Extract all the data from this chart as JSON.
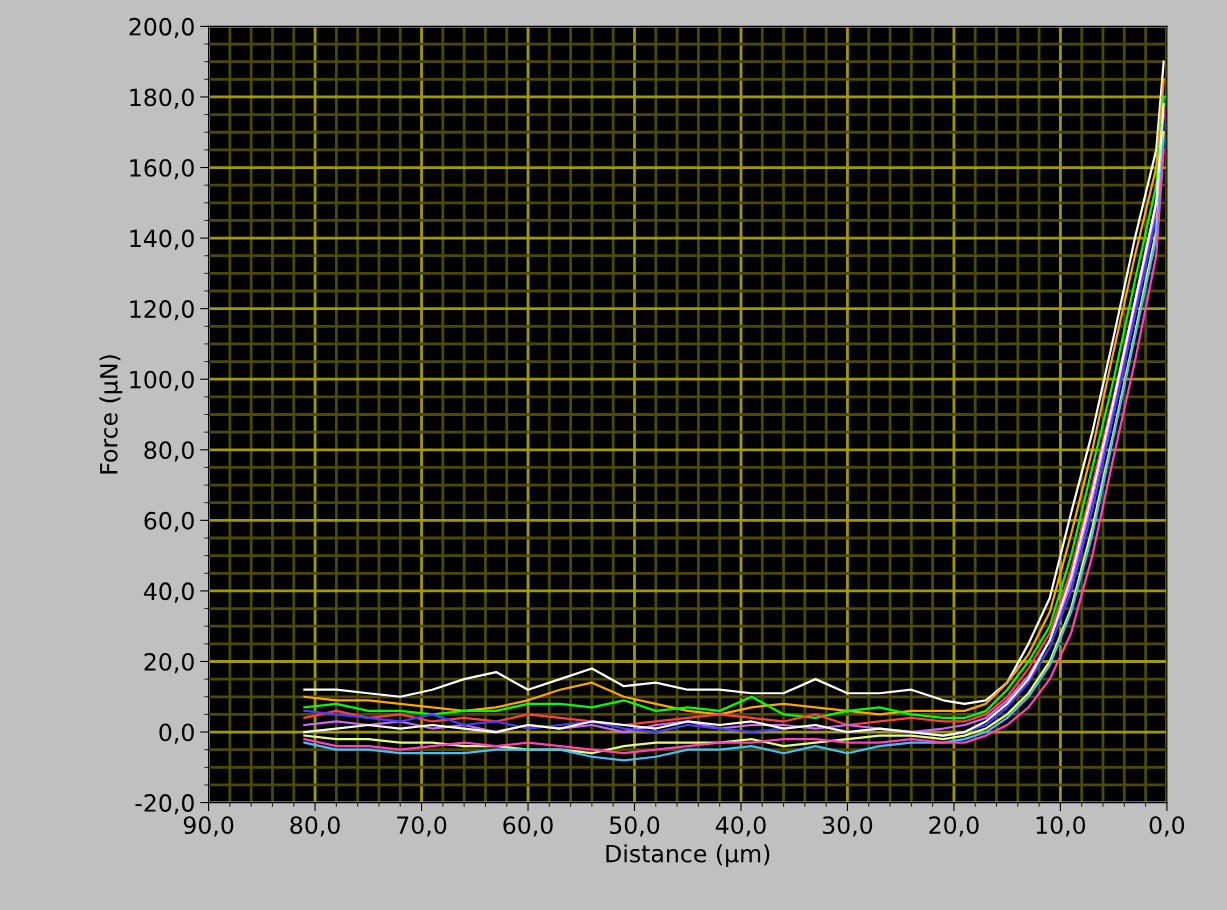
{
  "chart_data": {
    "type": "line",
    "xlabel": "Distance (µm)",
    "ylabel": "Force (µN)",
    "xlim": [
      90,
      0
    ],
    "ylim": [
      -20,
      200
    ],
    "xticks": [
      {
        "value": 90,
        "label": "90,0"
      },
      {
        "value": 80,
        "label": "80,0"
      },
      {
        "value": 70,
        "label": "70,0"
      },
      {
        "value": 60,
        "label": "60,0"
      },
      {
        "value": 50,
        "label": "50,0"
      },
      {
        "value": 40,
        "label": "40,0"
      },
      {
        "value": 30,
        "label": "30,0"
      },
      {
        "value": 20,
        "label": "20,0"
      },
      {
        "value": 10,
        "label": "10,0"
      },
      {
        "value": 0,
        "label": "0,0"
      },
      {
        "value": 88,
        "label": null
      },
      {
        "value": 86,
        "label": null
      },
      {
        "value": 84,
        "label": null
      },
      {
        "value": 82,
        "label": null
      },
      {
        "value": 78,
        "label": null
      },
      {
        "value": 76,
        "label": null
      },
      {
        "value": 74,
        "label": null
      },
      {
        "value": 72,
        "label": null
      },
      {
        "value": 68,
        "label": null
      },
      {
        "value": 66,
        "label": null
      },
      {
        "value": 64,
        "label": null
      },
      {
        "value": 62,
        "label": null
      },
      {
        "value": 58,
        "label": null
      },
      {
        "value": 56,
        "label": null
      },
      {
        "value": 54,
        "label": null
      },
      {
        "value": 52,
        "label": null
      },
      {
        "value": 48,
        "label": null
      },
      {
        "value": 46,
        "label": null
      },
      {
        "value": 44,
        "label": null
      },
      {
        "value": 42,
        "label": null
      },
      {
        "value": 38,
        "label": null
      },
      {
        "value": 36,
        "label": null
      },
      {
        "value": 34,
        "label": null
      },
      {
        "value": 32,
        "label": null
      },
      {
        "value": 28,
        "label": null
      },
      {
        "value": 26,
        "label": null
      },
      {
        "value": 24,
        "label": null
      },
      {
        "value": 22,
        "label": null
      },
      {
        "value": 18,
        "label": null
      },
      {
        "value": 16,
        "label": null
      },
      {
        "value": 14,
        "label": null
      },
      {
        "value": 12,
        "label": null
      },
      {
        "value": 8,
        "label": null
      },
      {
        "value": 6,
        "label": null
      },
      {
        "value": 4,
        "label": null
      },
      {
        "value": 2,
        "label": null
      }
    ],
    "yticks": [
      {
        "value": -20,
        "label": "-20,0"
      },
      {
        "value": 0,
        "label": "0,0"
      },
      {
        "value": 20,
        "label": "20,0"
      },
      {
        "value": 40,
        "label": "40,0"
      },
      {
        "value": 60,
        "label": "60,0"
      },
      {
        "value": 80,
        "label": "80,0"
      },
      {
        "value": 100,
        "label": "100,0"
      },
      {
        "value": 120,
        "label": "120,0"
      },
      {
        "value": 140,
        "label": "140,0"
      },
      {
        "value": 160,
        "label": "160,0"
      },
      {
        "value": 180,
        "label": "180,0"
      },
      {
        "value": 200,
        "label": "200,0"
      },
      {
        "value": -15,
        "label": null
      },
      {
        "value": -10,
        "label": null
      },
      {
        "value": -5,
        "label": null
      },
      {
        "value": 5,
        "label": null
      },
      {
        "value": 10,
        "label": null
      },
      {
        "value": 15,
        "label": null
      },
      {
        "value": 25,
        "label": null
      },
      {
        "value": 30,
        "label": null
      },
      {
        "value": 35,
        "label": null
      },
      {
        "value": 45,
        "label": null
      },
      {
        "value": 50,
        "label": null
      },
      {
        "value": 55,
        "label": null
      },
      {
        "value": 65,
        "label": null
      },
      {
        "value": 70,
        "label": null
      },
      {
        "value": 75,
        "label": null
      },
      {
        "value": 85,
        "label": null
      },
      {
        "value": 90,
        "label": null
      },
      {
        "value": 95,
        "label": null
      },
      {
        "value": 105,
        "label": null
      },
      {
        "value": 110,
        "label": null
      },
      {
        "value": 115,
        "label": null
      },
      {
        "value": 125,
        "label": null
      },
      {
        "value": 130,
        "label": null
      },
      {
        "value": 135,
        "label": null
      },
      {
        "value": 145,
        "label": null
      },
      {
        "value": 150,
        "label": null
      },
      {
        "value": 155,
        "label": null
      },
      {
        "value": 165,
        "label": null
      },
      {
        "value": 170,
        "label": null
      },
      {
        "value": 175,
        "label": null
      },
      {
        "value": 185,
        "label": null
      },
      {
        "value": 190,
        "label": null
      },
      {
        "value": 195,
        "label": null
      }
    ],
    "grid": true,
    "marker": "none",
    "line_style": "solid",
    "x": [
      81,
      78,
      75,
      72,
      69,
      66,
      63,
      60,
      57,
      54,
      51,
      48,
      45,
      42,
      39,
      36,
      33,
      30,
      27,
      24,
      21,
      19,
      17,
      15,
      13,
      11,
      9,
      7,
      5,
      3,
      1,
      0.3
    ],
    "series": [
      {
        "color": "#ffffff",
        "values": [
          12,
          12,
          11,
          10,
          12,
          15,
          17,
          12,
          15,
          18,
          13,
          14,
          12,
          12,
          11,
          11,
          15,
          11,
          11,
          12,
          9,
          8,
          9,
          14,
          25,
          38,
          62,
          85,
          112,
          140,
          165,
          190
        ]
      },
      {
        "color": "#ffa500",
        "values": [
          10,
          9,
          9,
          8,
          7,
          6,
          7,
          9,
          12,
          14,
          10,
          8,
          6,
          5,
          7,
          8,
          7,
          6,
          5,
          6,
          6,
          6,
          8,
          14,
          22,
          34,
          56,
          80,
          108,
          135,
          160,
          185
        ]
      },
      {
        "color": "#00ff00",
        "values": [
          7,
          8,
          6,
          6,
          5,
          6,
          6,
          8,
          8,
          7,
          9,
          6,
          7,
          6,
          10,
          5,
          4,
          6,
          7,
          5,
          4,
          4,
          6,
          12,
          20,
          30,
          50,
          75,
          100,
          128,
          155,
          180
        ]
      },
      {
        "color": "#ff4040",
        "values": [
          4,
          6,
          4,
          5,
          3,
          4,
          3,
          5,
          4,
          3,
          2,
          3,
          4,
          5,
          4,
          3,
          5,
          2,
          3,
          4,
          3,
          3,
          5,
          10,
          18,
          28,
          46,
          70,
          95,
          122,
          150,
          176
        ]
      },
      {
        "color": "#cc66ff",
        "values": [
          2,
          3,
          2,
          3,
          1,
          2,
          0,
          2,
          1,
          2,
          0,
          2,
          3,
          1,
          2,
          2,
          1,
          2,
          1,
          0,
          1,
          2,
          4,
          9,
          16,
          26,
          42,
          66,
          92,
          120,
          148,
          175
        ]
      },
      {
        "color": "#4040ff",
        "values": [
          6,
          5,
          4,
          3,
          5,
          2,
          3,
          1,
          2,
          3,
          1,
          0,
          2,
          1,
          0,
          1,
          2,
          0,
          1,
          0,
          -1,
          0,
          2,
          7,
          14,
          24,
          40,
          63,
          90,
          118,
          146,
          172
        ]
      },
      {
        "color": "#ffffff",
        "values": [
          0,
          1,
          2,
          1,
          2,
          1,
          0,
          2,
          1,
          3,
          2,
          1,
          3,
          2,
          3,
          1,
          2,
          0,
          1,
          0,
          -1,
          0,
          3,
          8,
          15,
          26,
          44,
          68,
          94,
          122,
          150,
          178
        ]
      },
      {
        "color": "#e0ff80",
        "values": [
          -1,
          -2,
          -2,
          -3,
          -3,
          -4,
          -4,
          -5,
          -5,
          -6,
          -4,
          -3,
          -3,
          -3,
          -2,
          -4,
          -3,
          -2,
          -1,
          -1,
          -2,
          -1,
          1,
          5,
          11,
          20,
          35,
          58,
          85,
          113,
          142,
          170
        ]
      },
      {
        "color": "#40c0ff",
        "values": [
          -3,
          -5,
          -5,
          -6,
          -6,
          -6,
          -5,
          -5,
          -5,
          -7,
          -8,
          -7,
          -5,
          -5,
          -4,
          -6,
          -4,
          -6,
          -4,
          -3,
          -3,
          -2,
          0,
          4,
          10,
          19,
          34,
          56,
          84,
          112,
          140,
          168
        ]
      },
      {
        "color": "#ff40c0",
        "values": [
          -2,
          -4,
          -4,
          -5,
          -4,
          -3,
          -4,
          -3,
          -4,
          -5,
          -6,
          -5,
          -4,
          -3,
          -3,
          -2,
          -2,
          -3,
          -3,
          -2,
          -3,
          -3,
          -1,
          2,
          7,
          15,
          28,
          50,
          78,
          105,
          135,
          165
        ]
      }
    ]
  }
}
